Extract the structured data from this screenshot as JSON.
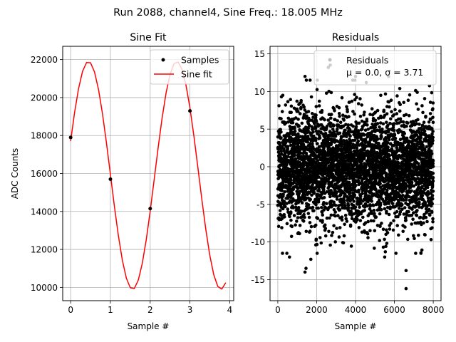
{
  "suptitle": "Run 2088, channel4, Sine Freq.: 18.005 MHz",
  "chart_data": [
    {
      "type": "line",
      "title": "Sine Fit",
      "xlabel": "Sample #",
      "ylabel": "ADC Counts",
      "xlim": [
        -0.2,
        4.1
      ],
      "ylim": [
        9300,
        22700
      ],
      "xticks": [
        0,
        1,
        2,
        3,
        4
      ],
      "yticks": [
        10000,
        12000,
        14000,
        16000,
        18000,
        20000,
        22000
      ],
      "grid": true,
      "legend_position": "top-right",
      "series": [
        {
          "name": "Samples",
          "kind": "scatter",
          "color": "#000000",
          "x": [
            0,
            1,
            2,
            3
          ],
          "y": [
            17900,
            15700,
            14150,
            19300
          ]
        },
        {
          "name": "Sine fit",
          "kind": "line",
          "color": "#ff0000",
          "amplitude": 6000,
          "offset": 15900,
          "period_samples": 2.2212,
          "phase_rad": 0.3051,
          "x_range": [
            0,
            3.9
          ]
        }
      ]
    },
    {
      "type": "scatter",
      "title": "Residuals",
      "xlabel": "Sample #",
      "ylabel": "",
      "xlim": [
        -400,
        8400
      ],
      "ylim": [
        -17.8,
        16
      ],
      "xticks": [
        0,
        2000,
        4000,
        6000,
        8000
      ],
      "yticks": [
        -15,
        -10,
        -5,
        0,
        5,
        10,
        15
      ],
      "grid": true,
      "legend_position": "top-right",
      "legend": {
        "label": "Residuals",
        "stats": "μ = 0.0, σ = 3.71"
      },
      "series": [
        {
          "name": "Residuals",
          "color": "#000000",
          "mean": 0.0,
          "std": 3.71,
          "x_range": [
            0,
            8000
          ],
          "count": 8000
        }
      ],
      "outliers": [
        {
          "x": 1400,
          "y": -14
        },
        {
          "x": 1450,
          "y": -13.5
        },
        {
          "x": 6600,
          "y": -16.2
        },
        {
          "x": 6600,
          "y": -13.8
        },
        {
          "x": 2600,
          "y": 13.2
        },
        {
          "x": 2700,
          "y": 13.5
        },
        {
          "x": 1400,
          "y": 12
        },
        {
          "x": 4000,
          "y": 12
        },
        {
          "x": 5700,
          "y": 12
        },
        {
          "x": 600,
          "y": -12
        },
        {
          "x": 1700,
          "y": -12.3
        },
        {
          "x": 5500,
          "y": -12
        }
      ]
    }
  ]
}
